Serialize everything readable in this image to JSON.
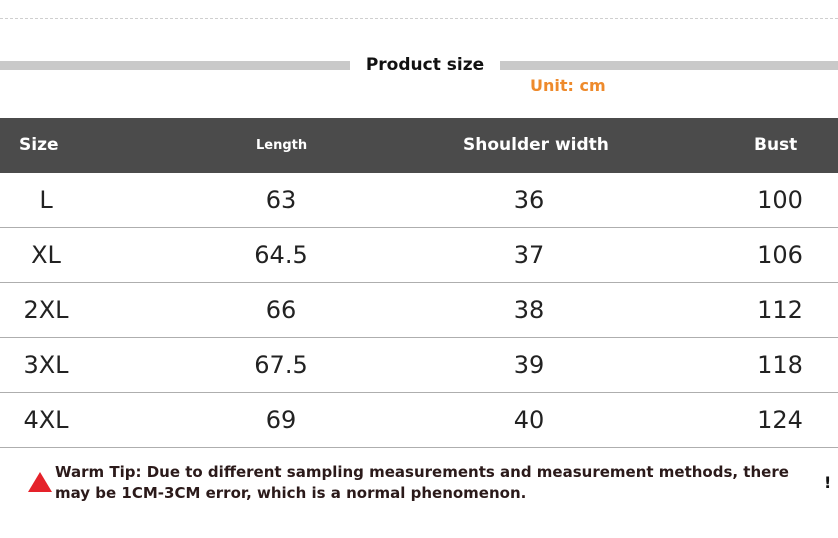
{
  "header": {
    "title": "Product size",
    "unit": "Unit: cm"
  },
  "table": {
    "columns": [
      "Size",
      "Length",
      "Shoulder width",
      "Bust"
    ],
    "rows": [
      [
        "L",
        "63",
        "36",
        "100"
      ],
      [
        "XL",
        "64.5",
        "37",
        "106"
      ],
      [
        "2XL",
        "66",
        "38",
        "112"
      ],
      [
        "3XL",
        "67.5",
        "39",
        "118"
      ],
      [
        "4XL",
        "69",
        "40",
        "124"
      ]
    ]
  },
  "tip": {
    "text": "Warm Tip: Due to different sampling measurements and measurement methods, there may be 1CM-3CM error, which is a normal phenomenon.",
    "mark": "!"
  },
  "colors": {
    "header_bg": "#4b4b4b",
    "unit_text": "#ee8a2c",
    "warning_icon": "#e5222a",
    "divider": "#c9c9c9"
  },
  "icons": {
    "warning": "warning-triangle-icon"
  }
}
